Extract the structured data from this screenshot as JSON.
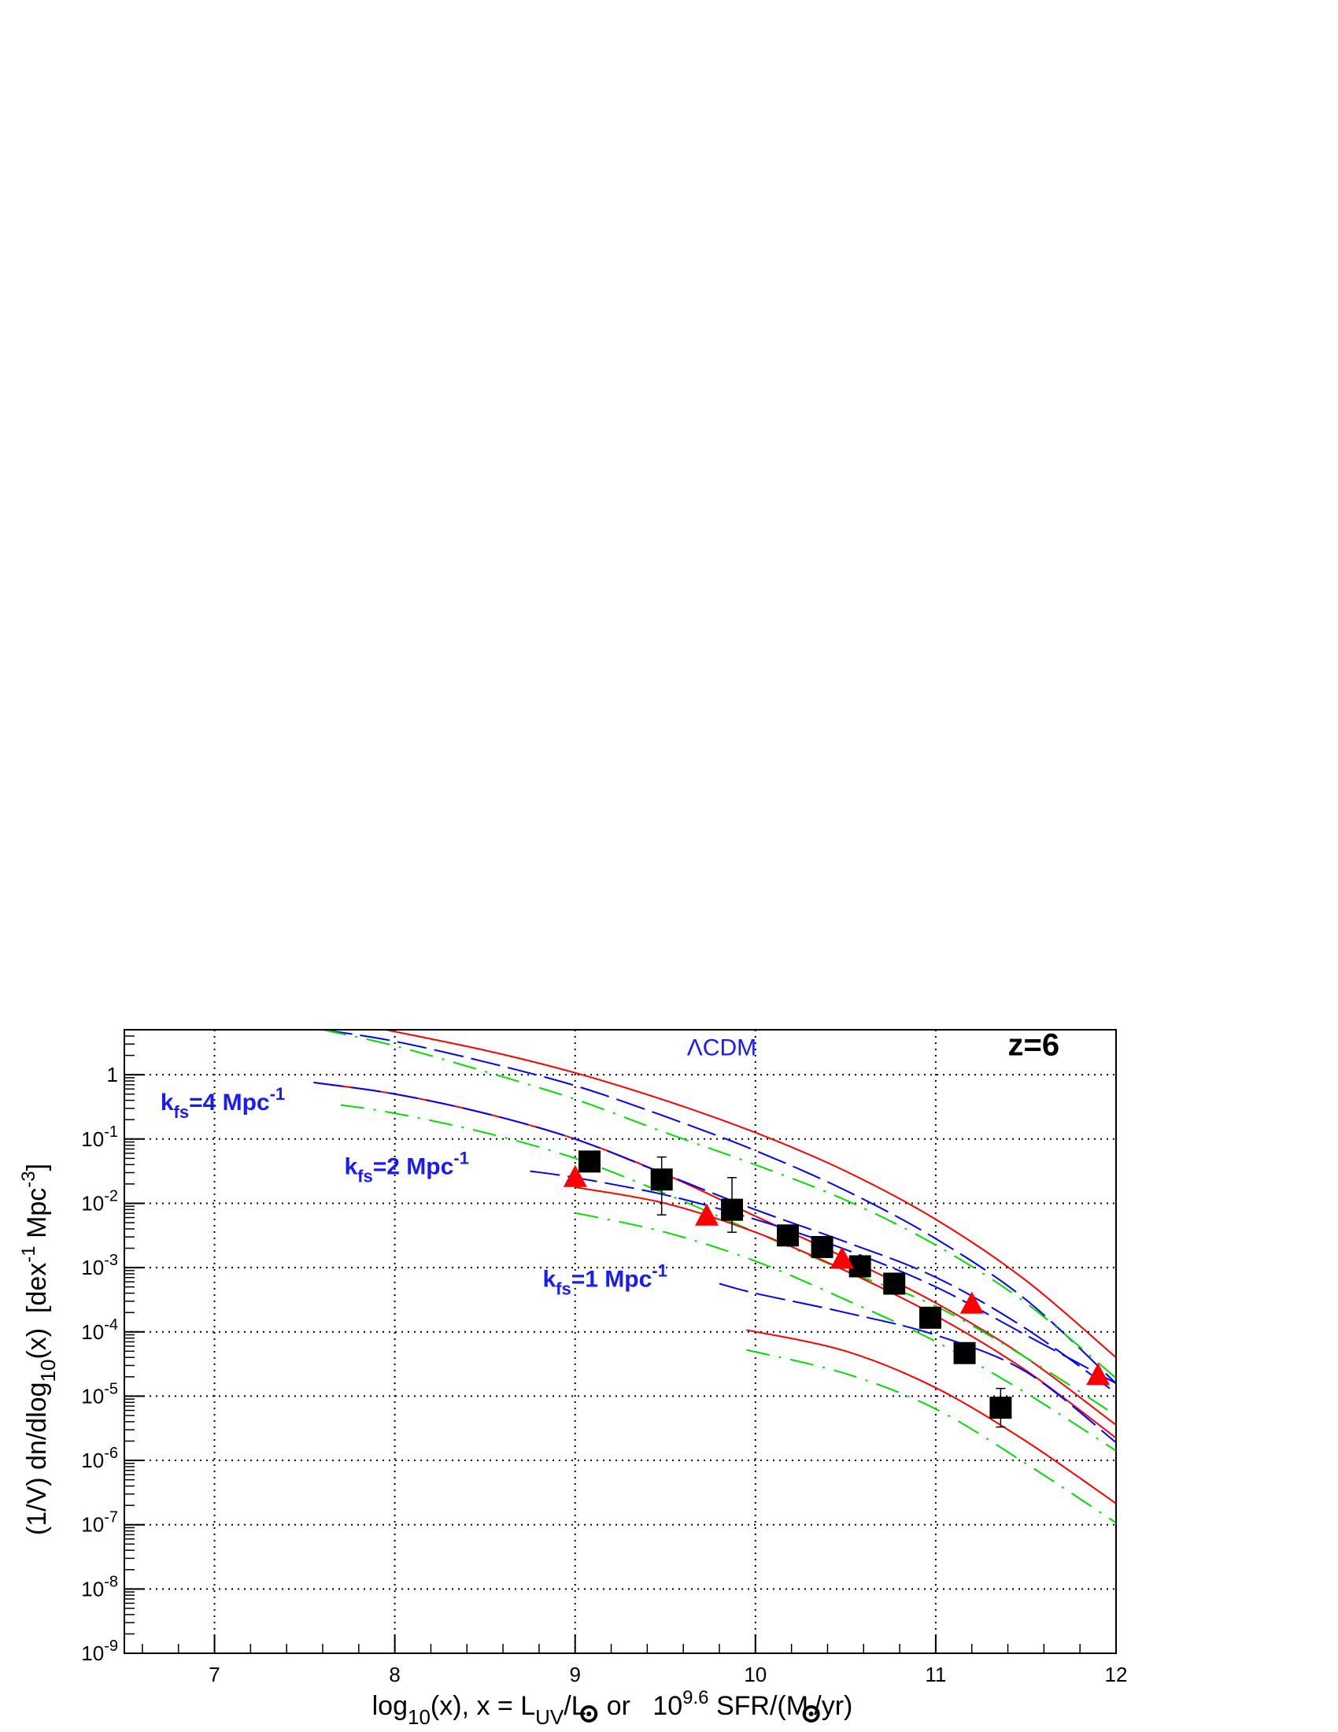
{
  "chart_data": {
    "type": "scatter",
    "title": "",
    "xlabel": {
      "text_a": "log",
      "sub_a": "10",
      "text_b": "(x), x = L",
      "sub_b": "UV",
      "text_c": "/L",
      "sun_symbol": "sun-symbol",
      "text_d": "  or   10",
      "sup": "9.6",
      "text_e": " SFR/(M",
      "text_f": "/yr)"
    },
    "ylabel": {
      "text_a": "(1/V) dn/dlog",
      "sub_a": "10",
      "text_b": "(x)  [dex",
      "sup_a": "-1",
      "text_c": " Mpc",
      "sup_b": "-3",
      "text_d": "]"
    },
    "xlim": [
      6.5,
      12
    ],
    "ylim_log10": [
      -9,
      0.7
    ],
    "y_scale": "log",
    "grid": true,
    "x_ticks": [
      {
        "value": 7,
        "label": "7"
      },
      {
        "value": 8,
        "label": "8"
      },
      {
        "value": 9,
        "label": "9"
      },
      {
        "value": 10,
        "label": "10"
      },
      {
        "value": 11,
        "label": "11"
      },
      {
        "value": 12,
        "label": "12"
      }
    ],
    "y_ticks": [
      {
        "exp": 0,
        "base": "1",
        "sup": ""
      },
      {
        "exp": -1,
        "base": "10",
        "sup": "-1"
      },
      {
        "exp": -2,
        "base": "10",
        "sup": "-2"
      },
      {
        "exp": -3,
        "base": "10",
        "sup": "-3"
      },
      {
        "exp": -4,
        "base": "10",
        "sup": "-4"
      },
      {
        "exp": -5,
        "base": "10",
        "sup": "-5"
      },
      {
        "exp": -6,
        "base": "10",
        "sup": "-6"
      },
      {
        "exp": -7,
        "base": "10",
        "sup": "-7"
      },
      {
        "exp": -8,
        "base": "10",
        "sup": "-8"
      },
      {
        "exp": -9,
        "base": "10",
        "sup": "-9"
      }
    ],
    "annotations": [
      {
        "id": "lcdm",
        "text": "ΛCDM",
        "x": 9.62,
        "y_log10": 0.3,
        "color": "#1a1aff"
      },
      {
        "id": "kfs4",
        "base": "k",
        "sub": "fs",
        "rest": "=4 Mpc",
        "sup": "-1",
        "x": 6.7,
        "y_log10": -0.55,
        "color": "#1a1aff"
      },
      {
        "id": "kfs2",
        "base": "k",
        "sub": "fs",
        "rest": "=2 Mpc",
        "sup": "-1",
        "x": 7.72,
        "y_log10": -1.55,
        "color": "#1a1aff"
      },
      {
        "id": "kfs1",
        "base": "k",
        "sub": "fs",
        "rest": "=1 Mpc",
        "sup": "-1",
        "x": 8.82,
        "y_log10": -3.3,
        "color": "#1a1aff"
      },
      {
        "id": "z6",
        "text": "z=6",
        "x": 11.4,
        "y_log10": 0.3,
        "color": "#000000"
      }
    ],
    "series": [
      {
        "style": "red-solid",
        "color": "#ff0000",
        "dash": "none",
        "x": [
          7.95,
          8.5,
          9.0,
          9.5,
          10.0,
          10.5,
          11.0,
          11.5,
          12.0
        ],
        "y_log10": [
          0.7,
          0.38,
          0.03,
          -0.4,
          -0.9,
          -1.5,
          -2.25,
          -3.2,
          -4.4
        ]
      },
      {
        "style": "blue-longdash",
        "color": "#0000ff",
        "dash": "long",
        "x": [
          7.6,
          8.0,
          8.5,
          9.0,
          9.5,
          10.0,
          10.5,
          11.0,
          11.5,
          12.0
        ],
        "y_log10": [
          0.7,
          0.52,
          0.2,
          -0.17,
          -0.65,
          -1.18,
          -1.8,
          -2.55,
          -3.5,
          -4.8
        ]
      },
      {
        "style": "green-dashdot",
        "color": "#00dd00",
        "dash": "dashdot",
        "x": [
          7.6,
          8.0,
          8.5,
          9.0,
          9.5,
          10.0,
          10.5,
          11.0,
          11.5,
          12.0
        ],
        "y_log10": [
          0.7,
          0.45,
          0.05,
          -0.38,
          -0.9,
          -1.4,
          -1.95,
          -2.65,
          -3.55,
          -4.72
        ]
      },
      {
        "style": "red-solid",
        "color": "#ff0000",
        "dash": "none",
        "x": [
          7.55,
          8.0,
          8.5,
          9.0,
          9.5,
          10.0,
          10.5,
          11.0,
          11.5,
          12.0
        ],
        "y_log10": [
          -0.12,
          -0.3,
          -0.6,
          -1.0,
          -1.55,
          -2.2,
          -2.85,
          -3.55,
          -4.4,
          -5.45
        ]
      },
      {
        "style": "blue-longdash",
        "color": "#0000ff",
        "dash": "long",
        "x": [
          7.55,
          8.0,
          8.5,
          9.0,
          9.5,
          10.0,
          10.5,
          11.0,
          11.5,
          12.0
        ],
        "y_log10": [
          -0.12,
          -0.3,
          -0.6,
          -1.0,
          -1.55,
          -2.1,
          -2.6,
          -3.15,
          -3.95,
          -4.95
        ]
      },
      {
        "style": "green-dashdot",
        "color": "#00dd00",
        "dash": "dashdot",
        "x": [
          7.7,
          8.0,
          8.5,
          9.0,
          9.5,
          10.0,
          10.5,
          11.0,
          11.5,
          12.0
        ],
        "y_log10": [
          -0.47,
          -0.6,
          -0.9,
          -1.3,
          -1.85,
          -2.45,
          -3.05,
          -3.6,
          -4.4,
          -5.3
        ]
      },
      {
        "style": "red-solid",
        "color": "#ff0000",
        "dash": "none",
        "x": [
          9.0,
          9.5,
          10.0,
          10.5,
          11.0,
          11.5,
          12.0
        ],
        "y_log10": [
          -1.75,
          -2.0,
          -2.45,
          -3.05,
          -3.75,
          -4.6,
          -5.65
        ]
      },
      {
        "style": "blue-longdash",
        "color": "#0000ff",
        "dash": "long",
        "x": [
          8.75,
          9.0,
          9.5,
          10.0,
          10.5,
          11.0,
          11.5,
          12.0
        ],
        "y_log10": [
          -1.5,
          -1.6,
          -1.87,
          -2.25,
          -2.72,
          -3.3,
          -4.05,
          -4.8
        ]
      },
      {
        "style": "green-dashdot",
        "color": "#00dd00",
        "dash": "dashdot",
        "x": [
          9.0,
          9.5,
          10.0,
          10.5,
          11.0,
          11.5,
          12.0
        ],
        "y_log10": [
          -2.15,
          -2.45,
          -2.9,
          -3.5,
          -4.15,
          -4.95,
          -5.85
        ]
      },
      {
        "style": "red-solid",
        "color": "#ff0000",
        "dash": "none",
        "x": [
          9.95,
          10.5,
          11.0,
          11.5,
          12.0
        ],
        "y_log10": [
          -3.97,
          -4.3,
          -4.87,
          -5.7,
          -6.67
        ]
      },
      {
        "style": "blue-longdash",
        "color": "#0000ff",
        "dash": "long",
        "x": [
          9.8,
          10.0,
          10.5,
          11.0,
          11.5,
          12.0
        ],
        "y_log10": [
          -3.25,
          -3.4,
          -3.7,
          -4.05,
          -4.62,
          -5.72
        ]
      },
      {
        "style": "green-dashdot",
        "color": "#00dd00",
        "dash": "dashdot",
        "x": [
          9.95,
          10.5,
          11.0,
          11.5,
          12.0
        ],
        "y_log10": [
          -4.28,
          -4.65,
          -5.2,
          -6.05,
          -6.97
        ]
      }
    ],
    "points_squares": {
      "color": "#000000",
      "x": [
        9.08,
        9.48,
        9.87,
        10.18,
        10.37,
        10.58,
        10.77,
        10.97,
        11.16,
        11.36
      ],
      "y_log10": [
        -1.35,
        -1.63,
        -2.1,
        -2.5,
        -2.68,
        -2.98,
        -3.25,
        -3.78,
        -4.33,
        -5.18
      ],
      "err_lo_log10": [
        0.1,
        0.55,
        0.35,
        0.08,
        0.08,
        0.06,
        0.06,
        0.08,
        0.1,
        0.3
      ],
      "err_hi_log10": [
        0.08,
        0.35,
        0.5,
        0.07,
        0.07,
        0.05,
        0.05,
        0.07,
        0.08,
        0.3
      ]
    },
    "points_triangles": {
      "color": "#ff0000",
      "x": [
        9.0,
        9.73,
        10.48,
        11.2,
        11.9
      ],
      "y_log10": [
        -1.6,
        -2.2,
        -2.87,
        -3.57,
        -4.68
      ]
    }
  }
}
